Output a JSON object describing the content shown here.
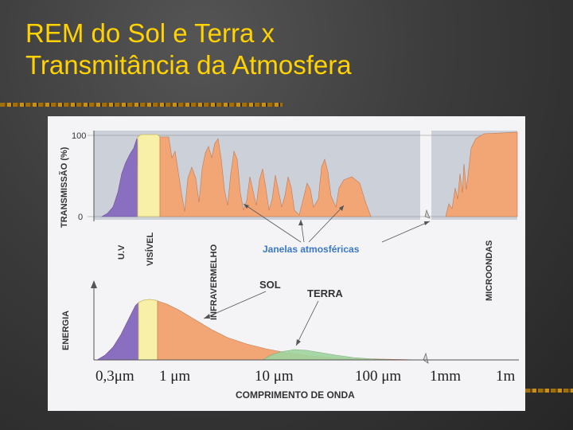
{
  "slide": {
    "title_line1": "REM do Sol e Terra x",
    "title_line2": "Transmitância da Atmosfera"
  },
  "figure": {
    "transmission_axis_title": "TRANSMISSÃO (%)",
    "transmission_ticks": [
      "100",
      "0"
    ],
    "energy_axis_title": "ENERGIA",
    "band_labels": {
      "uv": "U.V",
      "visible": "VISÍVEL",
      "infrared": "INFRAVERMELHO",
      "microwave": "MICROONDAS"
    },
    "windows_label": "Janelas atmosféricas",
    "sun_label": "SOL",
    "earth_label": "TERRA",
    "x_ticks": [
      "0,3μm",
      "1 μm",
      "10 μm",
      "100 μm",
      "1mm",
      "1m"
    ],
    "x_axis_title": "COMPRIMENTO DE ONDA"
  },
  "colors": {
    "title": "#ffd200",
    "uv": "#8a6fc0",
    "visible": "#f8f0a8",
    "infrared": "#f2a676",
    "microwave": "#f2a676",
    "earth": "#9fd49f",
    "windows_label": "#3a78c8"
  }
}
